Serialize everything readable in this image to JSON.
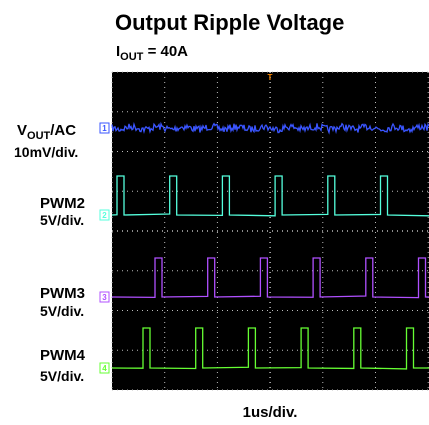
{
  "header": {
    "title": "Output Ripple Voltage",
    "subtitle_main": "I",
    "subtitle_sub": "OUT",
    "subtitle_rest": " = 40A"
  },
  "channels": [
    {
      "name_main": "V",
      "name_sub": "OUT",
      "name_rest": "/AC",
      "scale": "10mV/div.",
      "marker": "1"
    },
    {
      "name_main": "PWM2",
      "scale": "5V/div.",
      "marker": "2"
    },
    {
      "name_main": "PWM3",
      "scale": "5V/div.",
      "marker": "3"
    },
    {
      "name_main": "PWM4",
      "scale": "5V/div.",
      "marker": "4"
    }
  ],
  "trigger": "T",
  "timebase": "1us/div."
}
